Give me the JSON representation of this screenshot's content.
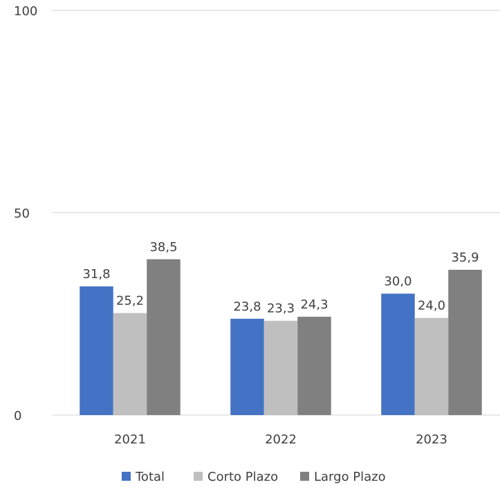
{
  "chart_data": {
    "type": "bar",
    "categories": [
      "2021",
      "2022",
      "2023"
    ],
    "series": [
      {
        "name": "Total",
        "values": [
          31.8,
          23.8,
          30.0
        ],
        "labels": [
          "31,8",
          "23,8",
          "30,0"
        ],
        "color": "#4472C4"
      },
      {
        "name": "Corto Plazo",
        "values": [
          25.2,
          23.3,
          24.0
        ],
        "labels": [
          "25,2",
          "23,3",
          "24,0"
        ],
        "color": "#BFBFBF"
      },
      {
        "name": "Largo Plazo",
        "values": [
          38.5,
          24.3,
          35.9
        ],
        "labels": [
          "38,5",
          "24,3",
          "35,9"
        ],
        "color": "#808080"
      }
    ],
    "yticks": [
      0,
      50,
      100
    ],
    "ylim": [
      0,
      100
    ],
    "grid": true,
    "gridline_color": "#D9D9D9",
    "legend_position": "bottom",
    "title": "",
    "xlabel": "",
    "ylabel": ""
  }
}
